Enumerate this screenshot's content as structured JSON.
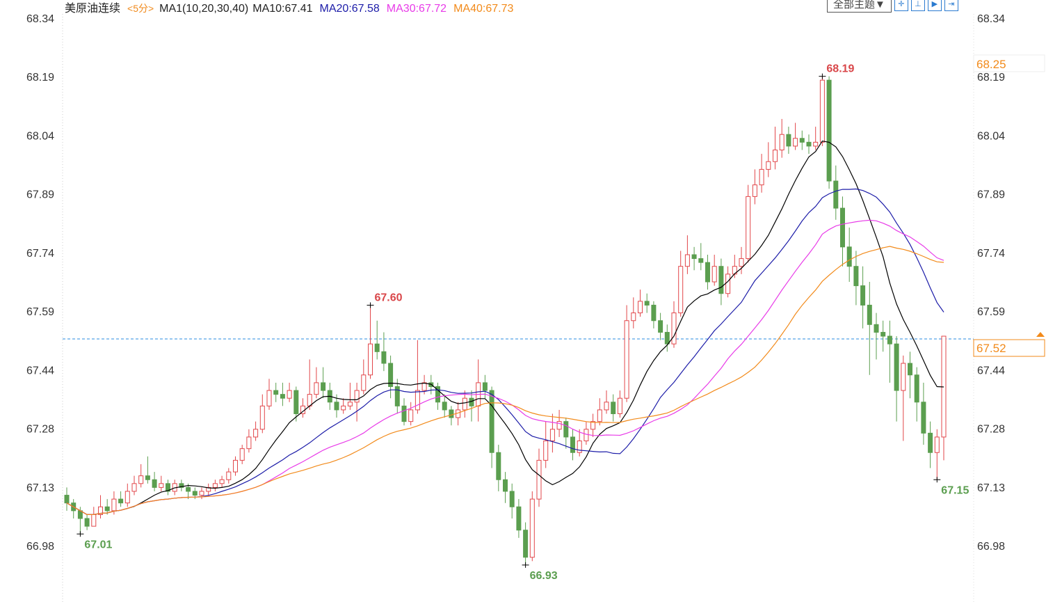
{
  "header": {
    "symbol": "美原油连续",
    "period": "<5分>",
    "indicator": "MA1(10,20,30,40)",
    "ma10": "MA10:67.41",
    "ma20": "MA20:67.58",
    "ma30": "MA30:67.72",
    "ma40": "MA40:67.73"
  },
  "toolbar": {
    "theme_label": "全部主题▼",
    "tools": [
      "crosshair-icon",
      "zoom-in-icon",
      "play-icon",
      "expand-icon"
    ]
  },
  "chart_data": {
    "type": "candlestick",
    "ylim": [
      66.98,
      68.34
    ],
    "yticks": [
      "68.34",
      "68.19",
      "68.04",
      "67.89",
      "67.74",
      "67.59",
      "67.44",
      "67.28",
      "67.13",
      "66.98"
    ],
    "current_price": "67.52",
    "alert_price": "68.25",
    "annotations": [
      {
        "index": 112,
        "value": "68.19",
        "type": "high"
      },
      {
        "index": 45,
        "value": "67.60",
        "type": "high"
      },
      {
        "index": 2,
        "value": "67.01",
        "type": "low"
      },
      {
        "index": 68,
        "value": "66.93",
        "type": "low"
      },
      {
        "index": 129,
        "value": "67.15",
        "type": "low"
      }
    ],
    "colors": {
      "up": "#e2464a",
      "down": "#5b9e4f",
      "ma10": "#000000",
      "ma20": "#1c1ca8",
      "ma30": "#e83be8",
      "ma40": "#f28a1a",
      "current_line": "#2a8be0",
      "price_tag": "#f28a1a"
    },
    "ma_periods": [
      10,
      20,
      30,
      40
    ],
    "candles": [
      [
        67.11,
        67.13,
        67.07,
        67.09
      ],
      [
        67.09,
        67.1,
        67.05,
        67.07
      ],
      [
        67.07,
        67.08,
        67.01,
        67.05
      ],
      [
        67.05,
        67.06,
        67.02,
        67.03
      ],
      [
        67.03,
        67.08,
        67.03,
        67.06
      ],
      [
        67.06,
        67.11,
        67.05,
        67.08
      ],
      [
        67.08,
        67.1,
        67.06,
        67.07
      ],
      [
        67.07,
        67.12,
        67.06,
        67.1
      ],
      [
        67.1,
        67.12,
        67.08,
        67.09
      ],
      [
        67.09,
        67.14,
        67.08,
        67.12
      ],
      [
        67.12,
        67.16,
        67.11,
        67.14
      ],
      [
        67.14,
        67.19,
        67.13,
        67.16
      ],
      [
        67.16,
        67.21,
        67.14,
        67.15
      ],
      [
        67.15,
        67.17,
        67.12,
        67.13
      ],
      [
        67.13,
        67.16,
        67.12,
        67.14
      ],
      [
        67.14,
        67.15,
        67.11,
        67.12
      ],
      [
        67.12,
        67.15,
        67.11,
        67.14
      ],
      [
        67.14,
        67.15,
        67.12,
        67.13
      ],
      [
        67.13,
        67.14,
        67.1,
        67.12
      ],
      [
        67.12,
        67.13,
        67.1,
        67.11
      ],
      [
        67.11,
        67.13,
        67.1,
        67.12
      ],
      [
        67.12,
        67.14,
        67.11,
        67.13
      ],
      [
        67.13,
        67.15,
        67.12,
        67.14
      ],
      [
        67.14,
        67.16,
        67.13,
        67.15
      ],
      [
        67.15,
        67.18,
        67.14,
        67.17
      ],
      [
        67.17,
        67.21,
        67.16,
        67.2
      ],
      [
        67.2,
        67.24,
        67.19,
        67.23
      ],
      [
        67.23,
        67.28,
        67.22,
        67.26
      ],
      [
        67.26,
        67.3,
        67.25,
        67.28
      ],
      [
        67.28,
        67.37,
        67.27,
        67.34
      ],
      [
        67.34,
        67.41,
        67.33,
        67.38
      ],
      [
        67.38,
        67.4,
        67.35,
        67.37
      ],
      [
        67.37,
        67.4,
        67.34,
        67.36
      ],
      [
        67.36,
        67.4,
        67.35,
        67.38
      ],
      [
        67.38,
        67.39,
        67.3,
        67.32
      ],
      [
        67.32,
        67.36,
        67.31,
        67.34
      ],
      [
        67.34,
        67.46,
        67.33,
        67.37
      ],
      [
        67.37,
        67.44,
        67.36,
        67.4
      ],
      [
        67.4,
        67.44,
        67.36,
        67.38
      ],
      [
        67.38,
        67.4,
        67.33,
        67.35
      ],
      [
        67.35,
        67.37,
        67.31,
        67.33
      ],
      [
        67.33,
        67.36,
        67.32,
        67.34
      ],
      [
        67.34,
        67.4,
        67.33,
        67.35
      ],
      [
        67.35,
        67.4,
        67.3,
        67.38
      ],
      [
        67.38,
        67.46,
        67.37,
        67.42
      ],
      [
        67.42,
        67.6,
        67.41,
        67.5
      ],
      [
        67.5,
        67.56,
        67.46,
        67.48
      ],
      [
        67.48,
        67.53,
        67.43,
        67.45
      ],
      [
        67.45,
        67.47,
        67.36,
        67.39
      ],
      [
        67.39,
        67.41,
        67.32,
        67.34
      ],
      [
        67.34,
        67.36,
        67.29,
        67.3
      ],
      [
        67.3,
        67.35,
        67.29,
        67.33
      ],
      [
        67.33,
        67.51,
        67.32,
        67.38
      ],
      [
        67.38,
        67.42,
        67.37,
        67.4
      ],
      [
        67.4,
        67.42,
        67.37,
        67.39
      ],
      [
        67.39,
        67.4,
        67.33,
        67.35
      ],
      [
        67.35,
        67.37,
        67.31,
        67.33
      ],
      [
        67.33,
        67.34,
        67.29,
        67.31
      ],
      [
        67.31,
        67.35,
        67.29,
        67.33
      ],
      [
        67.33,
        67.38,
        67.31,
        67.36
      ],
      [
        67.36,
        67.38,
        67.3,
        67.34
      ],
      [
        67.34,
        67.46,
        67.3,
        67.4
      ],
      [
        67.4,
        67.42,
        67.36,
        67.38
      ],
      [
        67.38,
        67.39,
        67.18,
        67.22
      ],
      [
        67.22,
        67.24,
        67.12,
        67.15
      ],
      [
        67.15,
        67.17,
        67.09,
        67.12
      ],
      [
        67.12,
        67.14,
        67.05,
        67.08
      ],
      [
        67.08,
        67.1,
        67.0,
        67.02
      ],
      [
        67.02,
        67.04,
        66.93,
        66.95
      ],
      [
        66.95,
        67.12,
        66.94,
        67.1
      ],
      [
        67.1,
        67.23,
        67.08,
        67.2
      ],
      [
        67.2,
        67.3,
        67.18,
        67.25
      ],
      [
        67.25,
        67.32,
        67.22,
        67.28
      ],
      [
        67.28,
        67.33,
        67.26,
        67.3
      ],
      [
        67.3,
        67.31,
        67.23,
        67.26
      ],
      [
        67.26,
        67.28,
        67.2,
        67.22
      ],
      [
        67.22,
        67.28,
        67.21,
        67.25
      ],
      [
        67.25,
        67.3,
        67.24,
        67.28
      ],
      [
        67.28,
        67.32,
        67.26,
        67.3
      ],
      [
        67.3,
        67.36,
        67.29,
        67.33
      ],
      [
        67.33,
        67.38,
        67.32,
        67.35
      ],
      [
        67.35,
        67.37,
        67.3,
        67.32
      ],
      [
        67.32,
        67.38,
        67.31,
        67.36
      ],
      [
        67.36,
        67.6,
        67.35,
        67.56
      ],
      [
        67.56,
        67.62,
        67.54,
        67.58
      ],
      [
        67.58,
        67.64,
        67.57,
        67.61
      ],
      [
        67.61,
        67.63,
        67.58,
        67.6
      ],
      [
        67.6,
        67.61,
        67.54,
        67.56
      ],
      [
        67.56,
        67.58,
        67.51,
        67.53
      ],
      [
        67.53,
        67.55,
        67.48,
        67.5
      ],
      [
        67.5,
        67.61,
        67.49,
        67.58
      ],
      [
        67.58,
        67.74,
        67.57,
        67.7
      ],
      [
        67.7,
        67.78,
        67.68,
        67.73
      ],
      [
        67.73,
        67.75,
        67.69,
        67.72
      ],
      [
        67.72,
        67.76,
        67.69,
        67.71
      ],
      [
        67.71,
        67.73,
        67.64,
        67.66
      ],
      [
        67.66,
        67.73,
        67.65,
        67.7
      ],
      [
        67.7,
        67.72,
        67.6,
        67.63
      ],
      [
        67.63,
        67.7,
        67.62,
        67.68
      ],
      [
        67.68,
        67.73,
        67.67,
        67.7
      ],
      [
        67.7,
        67.75,
        67.68,
        67.72
      ],
      [
        67.72,
        67.91,
        67.71,
        67.88
      ],
      [
        67.88,
        67.95,
        67.86,
        67.91
      ],
      [
        67.91,
        67.99,
        67.89,
        67.95
      ],
      [
        67.95,
        68.02,
        67.93,
        67.97
      ],
      [
        67.97,
        68.06,
        67.95,
        68.0
      ],
      [
        68.0,
        68.08,
        67.98,
        68.04
      ],
      [
        68.04,
        68.06,
        67.99,
        68.01
      ],
      [
        68.01,
        68.07,
        68.0,
        68.03
      ],
      [
        68.03,
        68.05,
        68.0,
        68.02
      ],
      [
        68.02,
        68.04,
        67.99,
        68.01
      ],
      [
        68.01,
        68.06,
        68.0,
        68.02
      ],
      [
        68.02,
        68.19,
        68.01,
        68.18
      ],
      [
        68.18,
        68.19,
        67.9,
        67.92
      ],
      [
        67.92,
        67.96,
        67.82,
        67.85
      ],
      [
        67.85,
        67.88,
        67.7,
        67.75
      ],
      [
        67.75,
        67.8,
        67.66,
        67.7
      ],
      [
        67.7,
        67.74,
        67.6,
        67.65
      ],
      [
        67.65,
        67.7,
        67.54,
        67.6
      ],
      [
        67.6,
        67.66,
        67.42,
        67.55
      ],
      [
        67.55,
        67.58,
        67.46,
        67.53
      ],
      [
        67.53,
        67.56,
        67.48,
        67.52
      ],
      [
        67.52,
        67.56,
        67.4,
        67.5
      ],
      [
        67.5,
        67.52,
        67.3,
        67.38
      ],
      [
        67.38,
        67.47,
        67.25,
        67.45
      ],
      [
        67.45,
        67.48,
        67.36,
        67.42
      ],
      [
        67.42,
        67.44,
        67.3,
        67.35
      ],
      [
        67.35,
        67.4,
        67.24,
        67.27
      ],
      [
        67.27,
        67.3,
        67.18,
        67.22
      ],
      [
        67.22,
        67.28,
        67.15,
        67.26
      ],
      [
        67.26,
        67.52,
        67.2,
        67.52
      ]
    ]
  }
}
